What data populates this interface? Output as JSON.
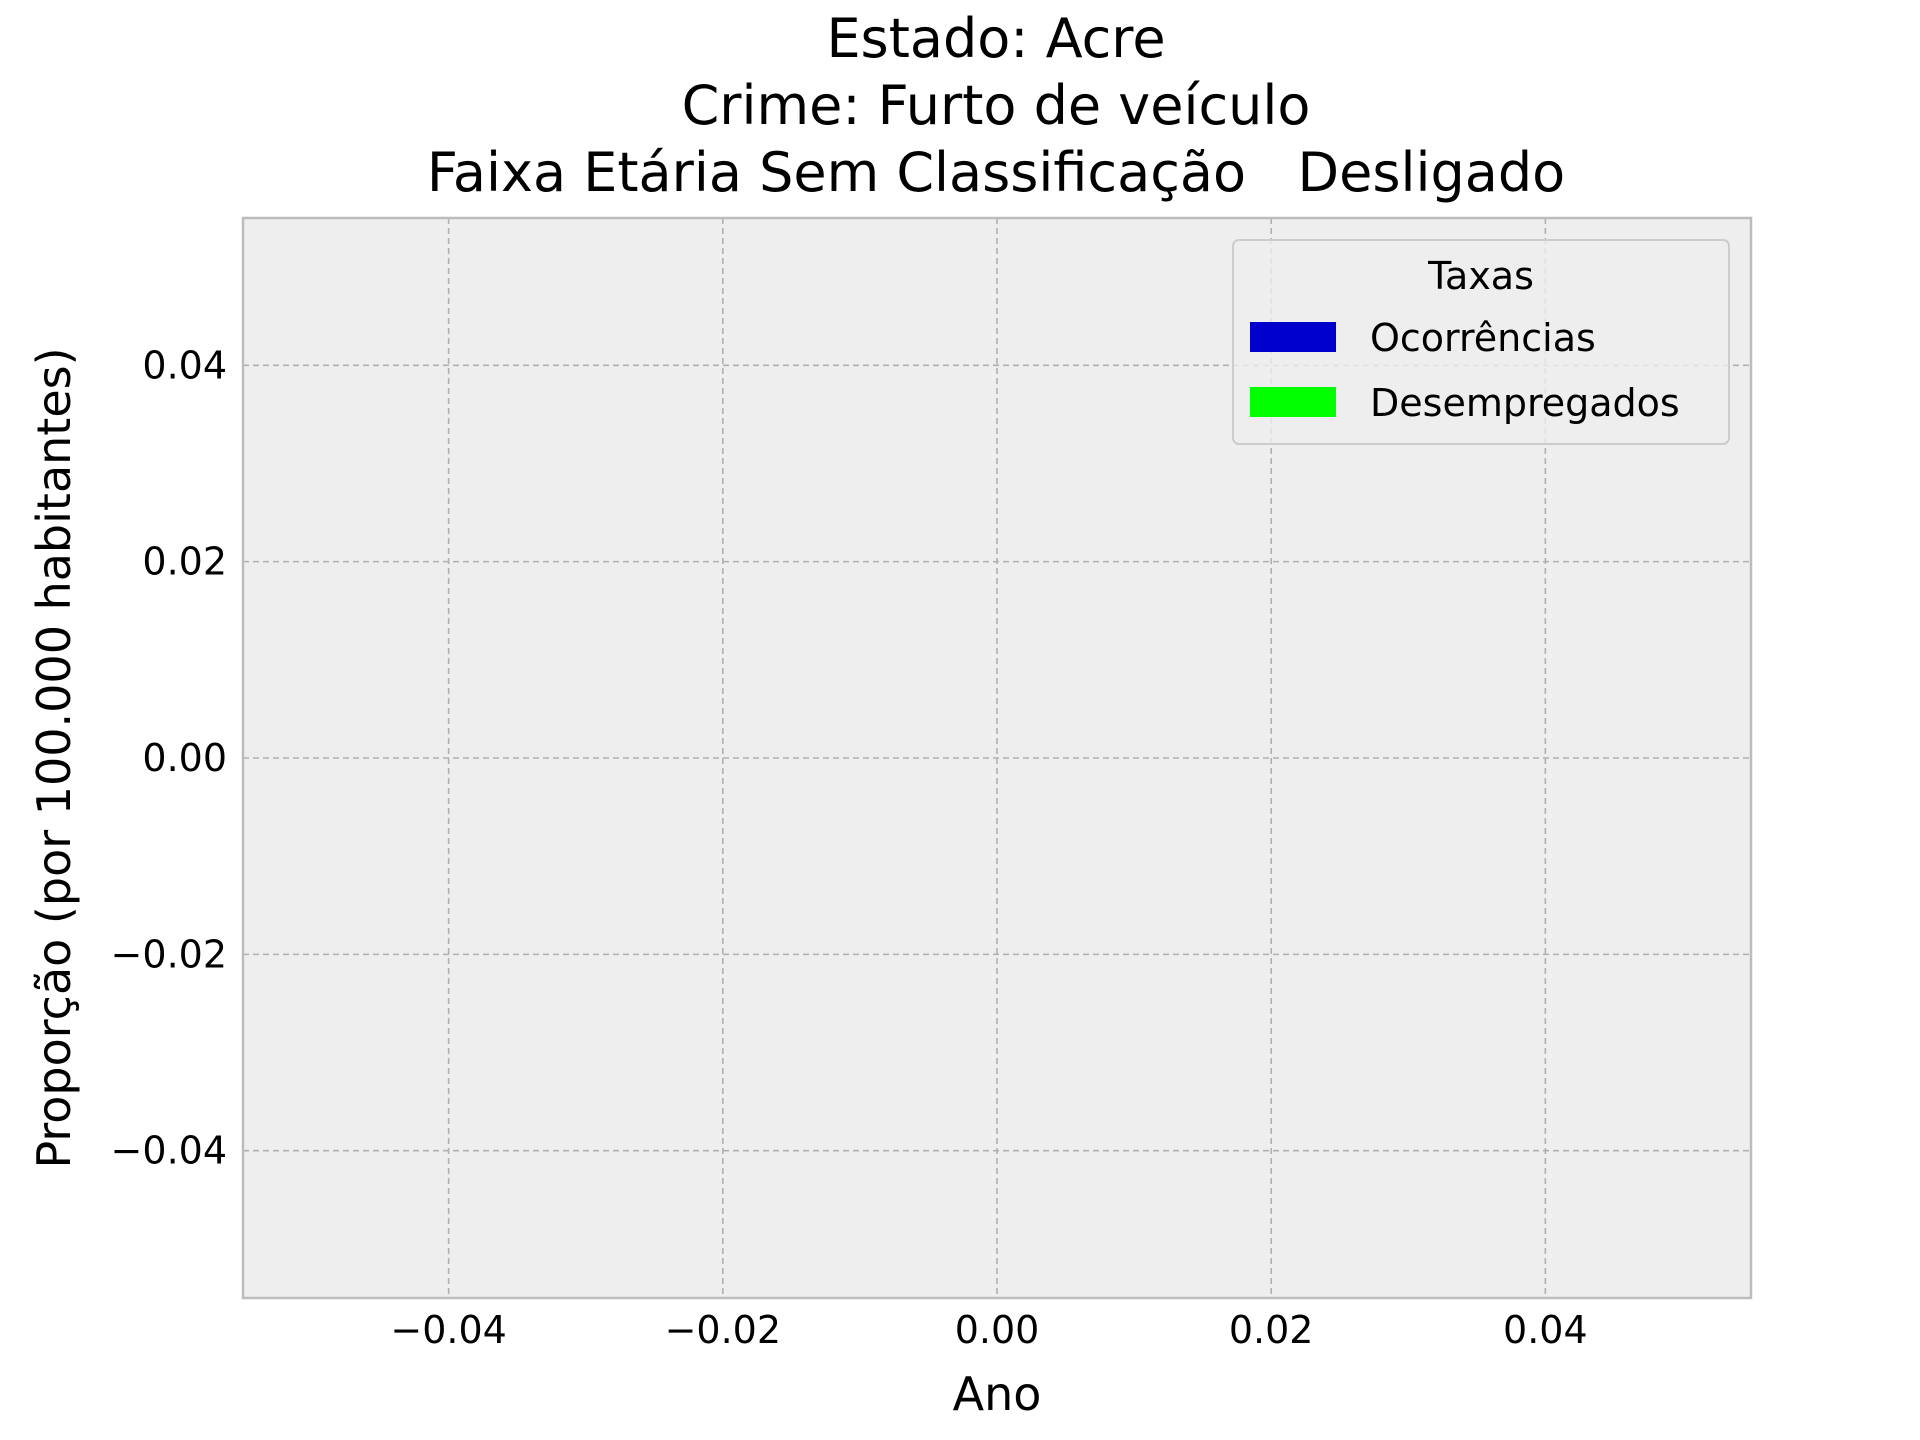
{
  "chart_data": {
    "type": "bar",
    "title_lines": [
      "Estado: Acre",
      "Crime: Furto de veículo",
      "Faixa Etária Sem Classificação   Desligado"
    ],
    "xlabel": "Ano",
    "ylabel": "Proporção (por 100.000 habitantes)",
    "xlim": [
      -0.055,
      0.055
    ],
    "ylim": [
      -0.055,
      0.055
    ],
    "x_ticks": [
      -0.04,
      -0.02,
      0.0,
      0.02,
      0.04
    ],
    "x_tick_labels": [
      "−0.04",
      "−0.02",
      "0.00",
      "0.02",
      "0.04"
    ],
    "y_ticks": [
      0.04,
      0.02,
      0.0,
      -0.02,
      -0.04
    ],
    "y_tick_labels": [
      "0.04",
      "0.02",
      "0.00",
      "−0.02",
      "−0.04"
    ],
    "grid": true,
    "legend": {
      "title": "Taxas",
      "position": "top-right",
      "entries": [
        {
          "name": "Ocorrências",
          "color": "#0000cc"
        },
        {
          "name": "Desempregados",
          "color": "#00ff00"
        }
      ]
    },
    "series": [
      {
        "name": "Ocorrências",
        "values": []
      },
      {
        "name": "Desempregados",
        "values": []
      }
    ],
    "colors": {
      "plot_background": "#eeeeee",
      "grid": "#b0b0b0",
      "frame": "#bcbcbc"
    }
  }
}
